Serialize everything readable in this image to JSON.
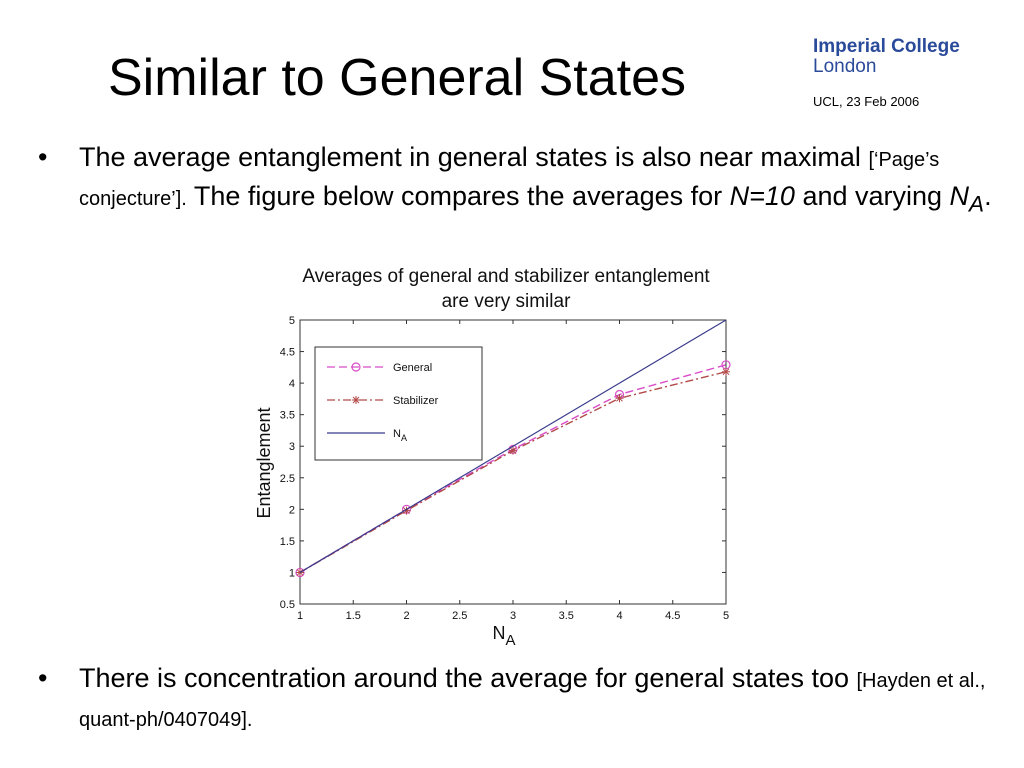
{
  "header": {
    "title": "Similar to General States",
    "logo_line1": "Imperial College",
    "logo_line2": "London",
    "meta": "UCL, 23 Feb 2006"
  },
  "bullets": [
    {
      "part1": "The average entanglement in general states is also near maximal ",
      "ref": "[‘Page’s conjecture’].",
      "part2": " The figure below compares the averages for ",
      "n_text": "N=10",
      "part3": " and varying ",
      "na_main": "N",
      "na_sub": "A",
      "part4": "."
    },
    {
      "part1": "There is  concentration around the average for general states too ",
      "ref": "[Hayden et al., quant-ph/0407049]."
    }
  ],
  "chart_data": {
    "type": "line",
    "title": "Averages of general and stabilizer entanglement are very similar",
    "title_line1": "Averages of general and stabilizer entanglement",
    "title_line2": "are very similar",
    "xlabel_main": "N",
    "xlabel_sub": "A",
    "ylabel": "Entanglement",
    "xlim": [
      1,
      5
    ],
    "ylim": [
      0.5,
      5
    ],
    "xticks": [
      1,
      1.5,
      2,
      2.5,
      3,
      3.5,
      4,
      4.5,
      5
    ],
    "yticks": [
      0.5,
      1,
      1.5,
      2,
      2.5,
      3,
      3.5,
      4,
      4.5,
      5
    ],
    "x": [
      1,
      2,
      3,
      4,
      5
    ],
    "series": [
      {
        "name": "General",
        "values": [
          1.0,
          2.0,
          2.95,
          3.82,
          4.29
        ],
        "color": "#d84cc8",
        "marker": "circle"
      },
      {
        "name": "Stabilizer",
        "values": [
          1.0,
          1.98,
          2.93,
          3.76,
          4.18
        ],
        "color": "#b24a4a",
        "marker": "star"
      },
      {
        "name": "N",
        "name_sub": "A",
        "values": [
          1,
          2,
          3,
          4,
          5
        ],
        "color": "#3a3c8c",
        "marker": "none"
      }
    ],
    "legend_position": "top-left",
    "grid": false
  },
  "colors": {
    "logo": "#2a4a9a"
  }
}
